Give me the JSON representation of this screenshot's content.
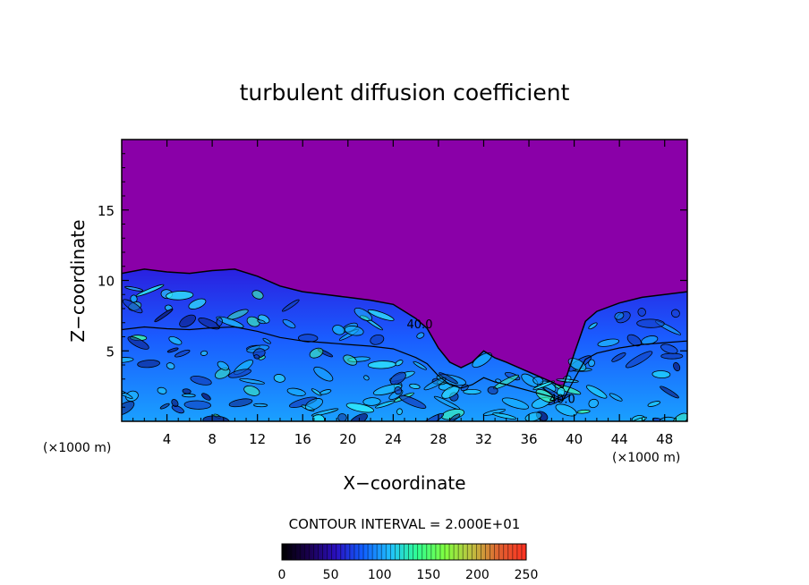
{
  "chart_data": {
    "type": "heatmap",
    "title": "turbulent diffusion coefficient",
    "xlabel": "X−coordinate",
    "ylabel": "Z−coordinate",
    "x_unit_left": "(×1000 m)",
    "x_unit_right": "(×1000 m)",
    "xlim": [
      0,
      50
    ],
    "ylim": [
      0,
      20
    ],
    "x_ticks": [
      4,
      8,
      12,
      16,
      20,
      24,
      28,
      32,
      36,
      40,
      44,
      48
    ],
    "y_ticks": [
      5,
      10,
      15
    ],
    "contour_interval_text": "CONTOUR INTERVAL = 2.000E+01",
    "contour_labels": [
      "40.0",
      "40.0"
    ],
    "colorbar": {
      "min": 0,
      "max": 250,
      "ticks": [
        0,
        50,
        100,
        150,
        200,
        250
      ],
      "colors": [
        "#000000",
        "#1a0050",
        "#2a10c0",
        "#1060ff",
        "#20c0ff",
        "#30ff90",
        "#80ff40",
        "#c0c040",
        "#e06030",
        "#ff3020"
      ]
    },
    "field": {
      "background_value": 0,
      "background_color": "#8a00a8",
      "turbulent_top_profile": [
        [
          0,
          10.5
        ],
        [
          2,
          10.8
        ],
        [
          4,
          10.6
        ],
        [
          6,
          10.5
        ],
        [
          8,
          10.7
        ],
        [
          10,
          10.8
        ],
        [
          12,
          10.3
        ],
        [
          14,
          9.6
        ],
        [
          16,
          9.2
        ],
        [
          18,
          9.0
        ],
        [
          20,
          8.8
        ],
        [
          22,
          8.6
        ],
        [
          24,
          8.3
        ],
        [
          26,
          7.3
        ],
        [
          27,
          6.6
        ],
        [
          28,
          5.2
        ],
        [
          29,
          4.2
        ],
        [
          30,
          3.8
        ],
        [
          31,
          4.2
        ],
        [
          32,
          5.0
        ],
        [
          33,
          4.5
        ],
        [
          34,
          4.2
        ],
        [
          36,
          3.5
        ],
        [
          38,
          2.8
        ],
        [
          39,
          2.4
        ],
        [
          40,
          4.8
        ],
        [
          41,
          7.1
        ],
        [
          42,
          7.8
        ],
        [
          44,
          8.4
        ],
        [
          46,
          8.8
        ],
        [
          48,
          9.0
        ],
        [
          50,
          9.2
        ]
      ]
    }
  }
}
